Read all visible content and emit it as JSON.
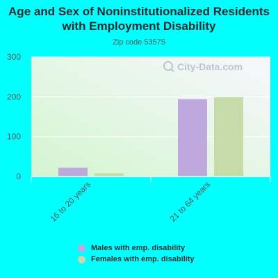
{
  "chart_data": {
    "type": "bar",
    "title": "Age and Sex of Noninstitutionalized Residents with Employment Disability",
    "subtitle": "Zip code 53575",
    "categories": [
      "16 to 20 years",
      "21 to 64 years"
    ],
    "series": [
      {
        "name": "Males with emp. disability",
        "values": [
          22,
          194
        ],
        "color": "#bfa9dc"
      },
      {
        "name": "Females with emp. disability",
        "values": [
          8,
          199
        ],
        "color": "#c5dba9"
      }
    ],
    "yticks": [
      0,
      100,
      200,
      300
    ],
    "ylim": [
      0,
      300
    ],
    "grid": true,
    "legend": "bottom",
    "watermark": "City-Data.com"
  }
}
